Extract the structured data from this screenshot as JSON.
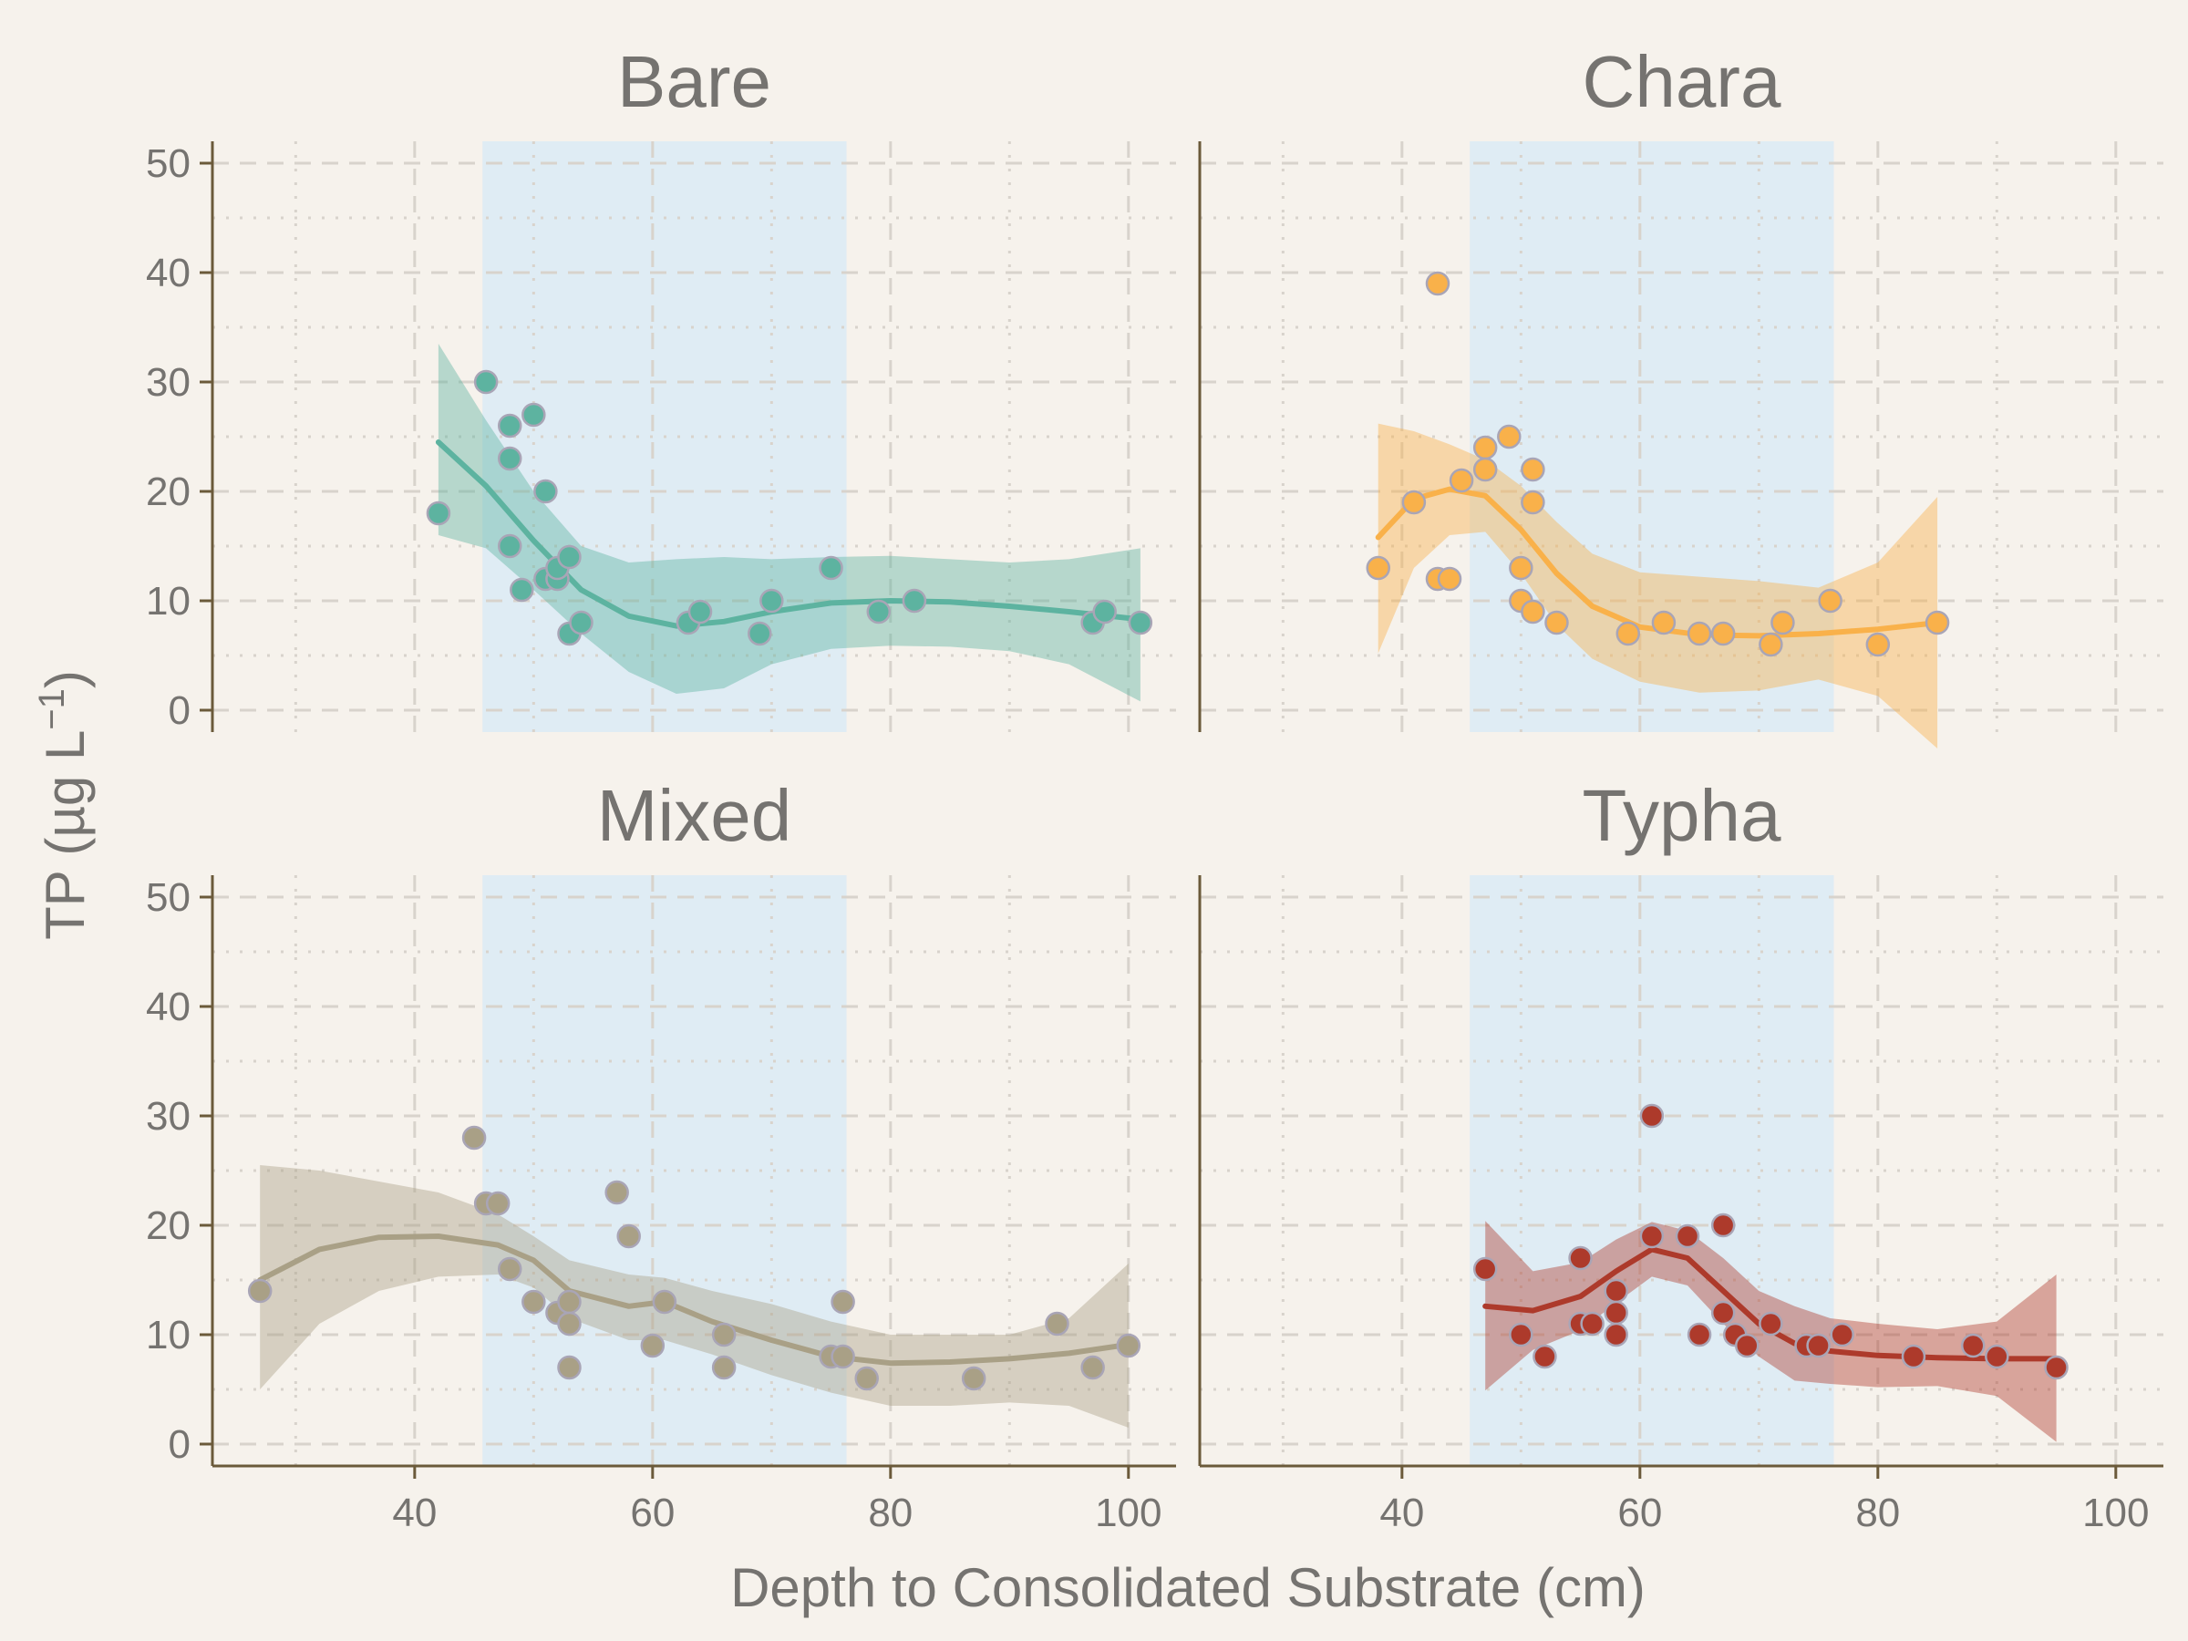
{
  "chart_data": {
    "type": "scatter",
    "layout": "facet-grid-2x2",
    "xlabel": "Depth to Consolidated Substrate (cm)",
    "ylabel": "TP (µg L",
    "ylabel_superscript": "−1",
    "ylabel_close": ")",
    "xlim": [
      23,
      104
    ],
    "ylim": [
      -2,
      52
    ],
    "x_ticks": [
      40,
      60,
      80,
      100
    ],
    "y_ticks": [
      0,
      10,
      20,
      30,
      40,
      50
    ],
    "grid": true,
    "shaded_band": {
      "x_start": 45.7,
      "x_end": 76.3,
      "color": "#dfecf4"
    },
    "colors": {
      "axis": "#6b5a3a",
      "grid": "#d8d3cc",
      "text": "#757370",
      "point_stroke": "#a9a5b6"
    },
    "facets": [
      {
        "name": "Bare",
        "color": "#5db3a0",
        "points": [
          [
            42,
            18
          ],
          [
            46,
            30
          ],
          [
            48,
            26
          ],
          [
            48,
            23
          ],
          [
            50,
            27
          ],
          [
            48,
            15
          ],
          [
            49,
            11
          ],
          [
            51,
            20
          ],
          [
            51,
            12
          ],
          [
            52,
            12
          ],
          [
            52,
            13
          ],
          [
            53,
            14
          ],
          [
            53,
            7
          ],
          [
            54,
            8
          ],
          [
            63,
            8
          ],
          [
            64,
            9
          ],
          [
            69,
            7
          ],
          [
            70,
            10
          ],
          [
            75,
            13
          ],
          [
            79,
            9
          ],
          [
            82,
            10
          ],
          [
            97,
            8
          ],
          [
            98,
            9
          ],
          [
            101,
            8
          ]
        ],
        "fit": [
          [
            42,
            24.5
          ],
          [
            46,
            20.5
          ],
          [
            50,
            15.5
          ],
          [
            54,
            11
          ],
          [
            58,
            8.6
          ],
          [
            62,
            7.7
          ],
          [
            66,
            8.1
          ],
          [
            70,
            9
          ],
          [
            75,
            9.8
          ],
          [
            80,
            10
          ],
          [
            85,
            9.9
          ],
          [
            90,
            9.5
          ],
          [
            95,
            9.0
          ],
          [
            101,
            8.3
          ]
        ],
        "ci_upper": [
          [
            42,
            33.5
          ],
          [
            46,
            26.5
          ],
          [
            50,
            20
          ],
          [
            54,
            15
          ],
          [
            58,
            13.5
          ],
          [
            62,
            13.8
          ],
          [
            66,
            14
          ],
          [
            70,
            13.8
          ],
          [
            75,
            14
          ],
          [
            80,
            14.1
          ],
          [
            85,
            13.8
          ],
          [
            90,
            13.5
          ],
          [
            95,
            13.8
          ],
          [
            101,
            14.8
          ]
        ],
        "ci_lower": [
          [
            42,
            16
          ],
          [
            46,
            14.8
          ],
          [
            50,
            11
          ],
          [
            54,
            7
          ],
          [
            58,
            3.5
          ],
          [
            62,
            1.5
          ],
          [
            66,
            2
          ],
          [
            70,
            4.2
          ],
          [
            75,
            5.6
          ],
          [
            80,
            5.9
          ],
          [
            85,
            5.8
          ],
          [
            90,
            5.4
          ],
          [
            95,
            4.2
          ],
          [
            101,
            0.8
          ]
        ]
      },
      {
        "name": "Chara",
        "color": "#f9b14a",
        "points": [
          [
            38,
            13
          ],
          [
            41,
            19
          ],
          [
            43,
            39
          ],
          [
            43,
            12
          ],
          [
            44,
            12
          ],
          [
            45,
            21
          ],
          [
            47,
            24
          ],
          [
            47,
            22
          ],
          [
            49,
            25
          ],
          [
            50,
            13
          ],
          [
            50,
            10
          ],
          [
            51,
            22
          ],
          [
            51,
            19
          ],
          [
            51,
            9
          ],
          [
            53,
            8
          ],
          [
            59,
            7
          ],
          [
            62,
            8
          ],
          [
            65,
            7
          ],
          [
            67,
            7
          ],
          [
            71,
            6
          ],
          [
            72,
            8
          ],
          [
            76,
            10
          ],
          [
            80,
            6
          ],
          [
            85,
            8
          ]
        ],
        "fit": [
          [
            38,
            15.8
          ],
          [
            41,
            19.3
          ],
          [
            44,
            20.2
          ],
          [
            47,
            19.6
          ],
          [
            50,
            16.5
          ],
          [
            53,
            12.5
          ],
          [
            56,
            9.5
          ],
          [
            60,
            7.6
          ],
          [
            65,
            6.9
          ],
          [
            70,
            6.8
          ],
          [
            75,
            7
          ],
          [
            80,
            7.4
          ],
          [
            85,
            8
          ]
        ],
        "ci_upper": [
          [
            38,
            26.2
          ],
          [
            41,
            25.5
          ],
          [
            44,
            24.3
          ],
          [
            47,
            22.9
          ],
          [
            50,
            20.5
          ],
          [
            53,
            17.2
          ],
          [
            56,
            14.3
          ],
          [
            60,
            12.6
          ],
          [
            65,
            12.2
          ],
          [
            70,
            11.8
          ],
          [
            75,
            11.2
          ],
          [
            80,
            13.5
          ],
          [
            85,
            19.5
          ]
        ],
        "ci_lower": [
          [
            38,
            5.2
          ],
          [
            41,
            13
          ],
          [
            44,
            16
          ],
          [
            47,
            16.3
          ],
          [
            50,
            12.5
          ],
          [
            53,
            7.8
          ],
          [
            56,
            4.7
          ],
          [
            60,
            2.6
          ],
          [
            65,
            1.6
          ],
          [
            70,
            1.8
          ],
          [
            75,
            2.8
          ],
          [
            80,
            1.3
          ],
          [
            85,
            -3.5
          ]
        ]
      },
      {
        "name": "Mixed",
        "color": "#a9a086",
        "points": [
          [
            27,
            14
          ],
          [
            45,
            28
          ],
          [
            46,
            22
          ],
          [
            47,
            22
          ],
          [
            48,
            16
          ],
          [
            50,
            13
          ],
          [
            52,
            12
          ],
          [
            53,
            13
          ],
          [
            53,
            11
          ],
          [
            53,
            7
          ],
          [
            57,
            23
          ],
          [
            58,
            19
          ],
          [
            60,
            9
          ],
          [
            61,
            13
          ],
          [
            66,
            10
          ],
          [
            66,
            7
          ],
          [
            75,
            8
          ],
          [
            76,
            13
          ],
          [
            76,
            8
          ],
          [
            78,
            6
          ],
          [
            87,
            6
          ],
          [
            94,
            11
          ],
          [
            97,
            7
          ],
          [
            100,
            9
          ]
        ],
        "fit": [
          [
            27,
            15
          ],
          [
            32,
            17.8
          ],
          [
            37,
            18.9
          ],
          [
            42,
            19
          ],
          [
            47,
            18.2
          ],
          [
            50,
            16.8
          ],
          [
            53,
            14
          ],
          [
            58,
            12.6
          ],
          [
            61,
            13
          ],
          [
            65,
            11.2
          ],
          [
            70,
            9.5
          ],
          [
            75,
            8
          ],
          [
            80,
            7.4
          ],
          [
            85,
            7.5
          ],
          [
            90,
            7.8
          ],
          [
            95,
            8.3
          ],
          [
            100,
            9.1
          ]
        ],
        "ci_upper": [
          [
            27,
            25.5
          ],
          [
            32,
            25
          ],
          [
            37,
            24
          ],
          [
            42,
            23
          ],
          [
            47,
            21
          ],
          [
            50,
            19
          ],
          [
            53,
            16.8
          ],
          [
            58,
            15.5
          ],
          [
            61,
            15.2
          ],
          [
            65,
            14
          ],
          [
            70,
            12.8
          ],
          [
            75,
            11.2
          ],
          [
            80,
            10
          ],
          [
            85,
            10
          ],
          [
            90,
            10
          ],
          [
            95,
            11.5
          ],
          [
            100,
            16.5
          ]
        ],
        "ci_lower": [
          [
            27,
            5
          ],
          [
            32,
            11
          ],
          [
            37,
            14
          ],
          [
            42,
            15.3
          ],
          [
            47,
            15.5
          ],
          [
            50,
            14.3
          ],
          [
            53,
            11.5
          ],
          [
            58,
            9.5
          ],
          [
            61,
            9.5
          ],
          [
            65,
            8.2
          ],
          [
            70,
            6.3
          ],
          [
            75,
            4.7
          ],
          [
            80,
            3.5
          ],
          [
            85,
            3.5
          ],
          [
            90,
            3.8
          ],
          [
            95,
            3.5
          ],
          [
            100,
            1.5
          ]
        ]
      },
      {
        "name": "Typha",
        "color": "#ad3a2b",
        "points": [
          [
            47,
            16
          ],
          [
            50,
            10
          ],
          [
            52,
            8
          ],
          [
            55,
            17
          ],
          [
            55,
            11
          ],
          [
            56,
            11
          ],
          [
            58,
            14
          ],
          [
            58,
            12
          ],
          [
            58,
            10
          ],
          [
            61,
            30
          ],
          [
            61,
            19
          ],
          [
            64,
            19
          ],
          [
            65,
            10
          ],
          [
            67,
            20
          ],
          [
            67,
            12
          ],
          [
            68,
            10
          ],
          [
            69,
            9
          ],
          [
            71,
            11
          ],
          [
            74,
            9
          ],
          [
            75,
            9
          ],
          [
            77,
            10
          ],
          [
            83,
            8
          ],
          [
            88,
            9
          ],
          [
            90,
            8
          ],
          [
            95,
            7
          ]
        ],
        "fit": [
          [
            47,
            12.6
          ],
          [
            51,
            12.2
          ],
          [
            55,
            13.5
          ],
          [
            58,
            15.8
          ],
          [
            61,
            17.8
          ],
          [
            64,
            17
          ],
          [
            67,
            14
          ],
          [
            70,
            11
          ],
          [
            73,
            9.2
          ],
          [
            76,
            8.5
          ],
          [
            80,
            8.1
          ],
          [
            85,
            7.9
          ],
          [
            90,
            7.8
          ],
          [
            95,
            7.8
          ]
        ],
        "ci_upper": [
          [
            47,
            20.4
          ],
          [
            51,
            15.8
          ],
          [
            55,
            16.6
          ],
          [
            58,
            18.7
          ],
          [
            61,
            20.3
          ],
          [
            64,
            19.5
          ],
          [
            67,
            17
          ],
          [
            70,
            14
          ],
          [
            73,
            12.6
          ],
          [
            76,
            11.5
          ],
          [
            80,
            11
          ],
          [
            85,
            10.5
          ],
          [
            90,
            11.2
          ],
          [
            95,
            15.5
          ]
        ],
        "ci_lower": [
          [
            47,
            4.9
          ],
          [
            51,
            8.6
          ],
          [
            55,
            10.4
          ],
          [
            58,
            12.9
          ],
          [
            61,
            15.3
          ],
          [
            64,
            14.5
          ],
          [
            67,
            11
          ],
          [
            70,
            8
          ],
          [
            73,
            5.8
          ],
          [
            76,
            5.5
          ],
          [
            80,
            5.2
          ],
          [
            85,
            5.3
          ],
          [
            90,
            4.4
          ],
          [
            95,
            0.2
          ]
        ]
      }
    ]
  }
}
